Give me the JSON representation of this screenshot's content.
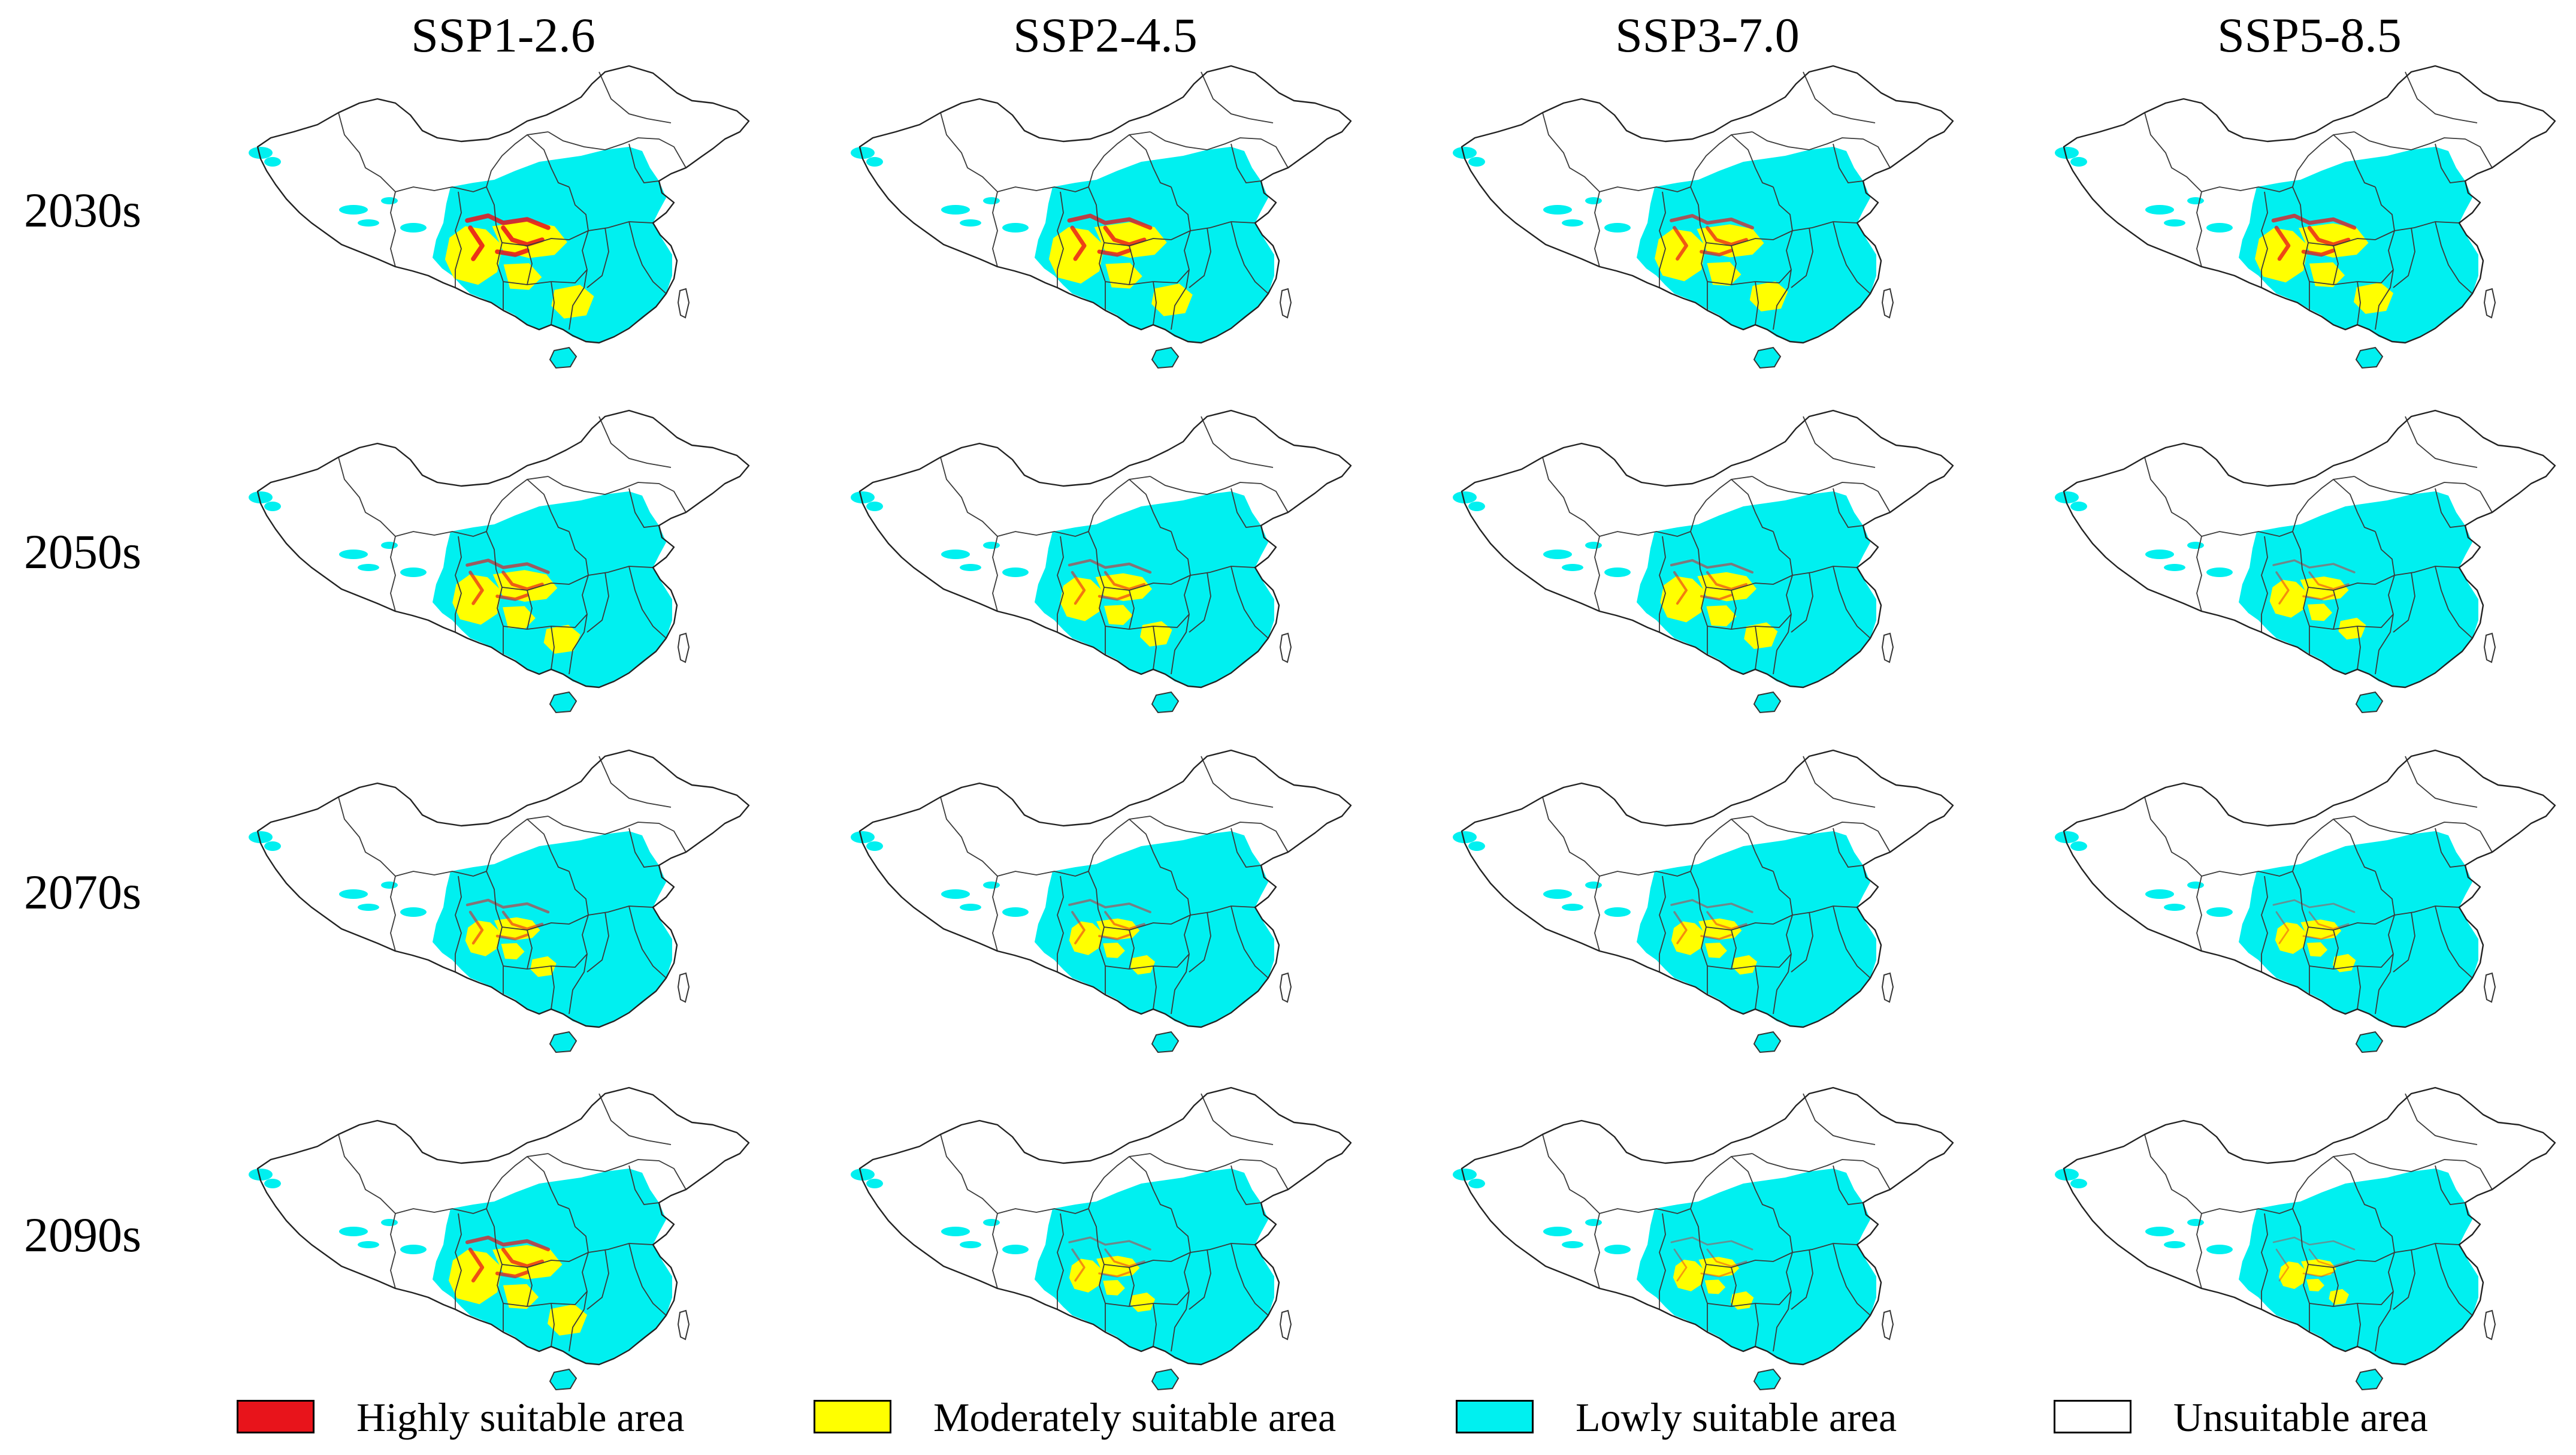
{
  "figure": {
    "scenarios": [
      {
        "label": "SSP1-2.6"
      },
      {
        "label": "SSP2-4.5"
      },
      {
        "label": "SSP3-7.0"
      },
      {
        "label": "SSP5-8.5"
      }
    ],
    "periods": [
      {
        "label": "2030s"
      },
      {
        "label": "2050s"
      },
      {
        "label": "2070s"
      },
      {
        "label": "2090s"
      }
    ]
  },
  "legend": {
    "items": [
      {
        "key": "high",
        "label": "Highly suitable area",
        "color": "#e8141b"
      },
      {
        "key": "moderate",
        "label": "Moderately suitable area",
        "color": "#ffff00"
      },
      {
        "key": "low",
        "label": "Lowly suitable area",
        "color": "#00f0f0"
      },
      {
        "key": "unsuitable",
        "label": "Unsuitable area",
        "color": "#ffffff"
      }
    ]
  },
  "suitability": [
    [
      {
        "moderate": 0.95,
        "high": 0.8
      },
      {
        "moderate": 0.9,
        "high": 0.7
      },
      {
        "moderate": 0.8,
        "high": 0.55
      },
      {
        "moderate": 0.85,
        "high": 0.65
      }
    ],
    [
      {
        "moderate": 0.75,
        "high": 0.5
      },
      {
        "moderate": 0.6,
        "high": 0.35
      },
      {
        "moderate": 0.65,
        "high": 0.3
      },
      {
        "moderate": 0.45,
        "high": 0.2
      }
    ],
    [
      {
        "moderate": 0.4,
        "high": 0.35
      },
      {
        "moderate": 0.35,
        "high": 0.25
      },
      {
        "moderate": 0.35,
        "high": 0.2
      },
      {
        "moderate": 0.3,
        "high": 0.12
      }
    ],
    [
      {
        "moderate": 0.85,
        "high": 0.6
      },
      {
        "moderate": 0.35,
        "high": 0.2
      },
      {
        "moderate": 0.3,
        "high": 0.12
      },
      {
        "moderate": 0.2,
        "high": 0.08
      }
    ]
  ]
}
